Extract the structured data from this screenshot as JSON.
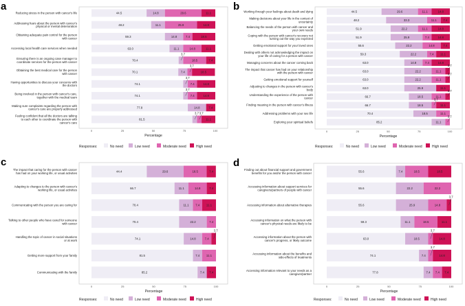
{
  "chart_data": {
    "type": "bar",
    "stacked": true,
    "orientation": "horizontal",
    "xlabel": "Percentage",
    "xlim": [
      0,
      100
    ],
    "xticks": [
      "0",
      "25",
      "50",
      "75",
      "100"
    ],
    "legend": {
      "title": "Responses:",
      "placement": "bottom",
      "entries": [
        "No need",
        "Low need",
        "Moderate need",
        "High need"
      ]
    },
    "colors": {
      "No need": "#efedf5",
      "Low need": "#d4b0d8",
      "Moderate need": "#df65b0",
      "High need": "#ce1256"
    },
    "panels": [
      {
        "letter": "a",
        "rows": [
          {
            "label": "Reducing stress in the person with cancer's life",
            "values": [
              44.5,
              14.8,
              29.6,
              11.1
            ]
          },
          {
            "label": "Addressing fears about the person with cancer's physical or mental deterioration",
            "values": [
              48.2,
              11.1,
              25.9,
              14.8
            ]
          },
          {
            "label": "Obtaining adequate pain control for the person with cancer",
            "values": [
              59.3,
              14.8,
              7.4,
              18.5
            ]
          },
          {
            "label": "Accessing local health care services when needed",
            "values": [
              63.0,
              11.1,
              14.8,
              11.1
            ]
          },
          {
            "label": "Ensuring there is an ongoing case manager to coordinate services for the person with cancer",
            "values": [
              70.4,
              3.7,
              18.5,
              7.4
            ]
          },
          {
            "label": "Obtaining the best medical care for the person with cancer",
            "values": [
              70.1,
              7.4,
              3.7,
              18.5
            ]
          },
          {
            "label": "Having opportunities to discuss your concerns with the doctors",
            "values": [
              74.1,
              3.7,
              7.4,
              14.8
            ]
          },
          {
            "label": "Being involved in the person with cancer's care, together with the medical team",
            "values": [
              74.1,
              3.7,
              7.4,
              14.8
            ]
          },
          {
            "label": "Making sure complaints regarding the person with cancer's care are properly addressed",
            "values": [
              77.8,
              14.8,
              0,
              7.4
            ]
          },
          {
            "label": "Feeling confident that all the doctors are talking to each other to coordinate the person with cancer's care",
            "values": [
              81.5,
              3.7,
              3.7,
              11.1
            ]
          }
        ]
      },
      {
        "letter": "b",
        "rows": [
          {
            "label": "Working through your feelings about death and dying",
            "values": [
              44.5,
              29.6,
              11.1,
              14.8
            ]
          },
          {
            "label": "Making decisions about your life in the context of uncertainty",
            "values": [
              48.2,
              33.3,
              11.1,
              7.4
            ]
          },
          {
            "label": "Balancing the needs of the person with cancer and your own needs",
            "values": [
              51.9,
              22.2,
              11.1,
              14.8
            ]
          },
          {
            "label": "Coping with the person with cancer's recovery not turning out the way you expected",
            "values": [
              51.9,
              25.9,
              7.4,
              14.8
            ]
          },
          {
            "label": "Getting emotional support for your loved ones",
            "values": [
              55.6,
              22.2,
              14.8,
              7.4
            ]
          },
          {
            "label": "Dealing with others not acknowledging the impact on your life of caring for a person with cancer",
            "values": [
              59.3,
              22.2,
              7.4,
              11.1
            ]
          },
          {
            "label": "Managing concerns about the cancer coming back",
            "values": [
              63.0,
              14.8,
              7.4,
              14.8
            ]
          },
          {
            "label": "The impact that cancer has had on your relationship with the person with cancer",
            "values": [
              63.0,
              22.2,
              11.1,
              3.7
            ]
          },
          {
            "label": "Getting emotional support for yourself",
            "values": [
              63.0,
              22.2,
              11.1,
              3.7
            ]
          },
          {
            "label": "Adjusting to changes in the person with cancer's body",
            "values": [
              63.0,
              25.9,
              0,
              11.1
            ]
          },
          {
            "label": "Understanding the experience of the person with cancer",
            "values": [
              66.7,
              18.5,
              11.1,
              3.7
            ]
          },
          {
            "label": "Finding meaning in the person with cancer's illness",
            "values": [
              66.7,
              18.5,
              3.7,
              11.1
            ]
          },
          {
            "label": "Addressing problems with your sex life",
            "values": [
              70.4,
              18.5,
              11.1,
              0
            ]
          },
          {
            "label": "Exploring your spiritual beliefs",
            "values": [
              85.2,
              11.1,
              3.7,
              0
            ]
          }
        ]
      },
      {
        "letter": "c",
        "rows": [
          {
            "label": "The impact that caring for the person with cancer has had on your working life, or usual activities",
            "values": [
              44.4,
              29.6,
              18.5,
              7.4
            ]
          },
          {
            "label": "Adapting to changes to the person with cancer's working life, or usual activities",
            "values": [
              66.7,
              11.1,
              14.8,
              7.4
            ]
          },
          {
            "label": "Communicating with the person you are caring for",
            "values": [
              70.4,
              11.1,
              7.4,
              11.1
            ]
          },
          {
            "label": "Talking to other people who have cared for someone with cancer",
            "values": [
              70.4,
              22.2,
              7.4,
              0
            ]
          },
          {
            "label": "Handling the topic of cancer in social situations or at work",
            "values": [
              74.1,
              14.8,
              7.4,
              3.7
            ]
          },
          {
            "label": "Getting more support from your family",
            "values": [
              81.5,
              7.4,
              11.1,
              0
            ]
          },
          {
            "label": "Communicating with the family",
            "values": [
              85.2,
              7.4,
              0,
              7.4
            ]
          }
        ]
      },
      {
        "letter": "d",
        "rows": [
          {
            "label": "Finding out about financial support and government benefits for you and/or the person with cancer",
            "values": [
              55.6,
              7.4,
              18.5,
              18.5
            ]
          },
          {
            "label": "Accessing information about support services for caregivers/partners of people with cancer",
            "values": [
              55.6,
              22.2,
              22.2,
              0
            ]
          },
          {
            "label": "Accessing information about alternative therapies",
            "values": [
              55.6,
              25.9,
              14.8,
              3.7
            ]
          },
          {
            "label": "Accessing information on what the person with cancer's physical needs are likely to be",
            "values": [
              59.3,
              11.1,
              18.5,
              11.1
            ]
          },
          {
            "label": "Accessing information about the person with cancer's progress, or likely outcome",
            "values": [
              63.0,
              18.5,
              3.7,
              14.8
            ]
          },
          {
            "label": "Accessing information about the benefits and side-effects of treatments",
            "values": [
              74.1,
              7.4,
              3.7,
              14.8
            ]
          },
          {
            "label": "Accessing information relevant to your needs as a caregiver/partner",
            "values": [
              77.8,
              7.4,
              7.4,
              7.4
            ]
          }
        ]
      }
    ]
  }
}
